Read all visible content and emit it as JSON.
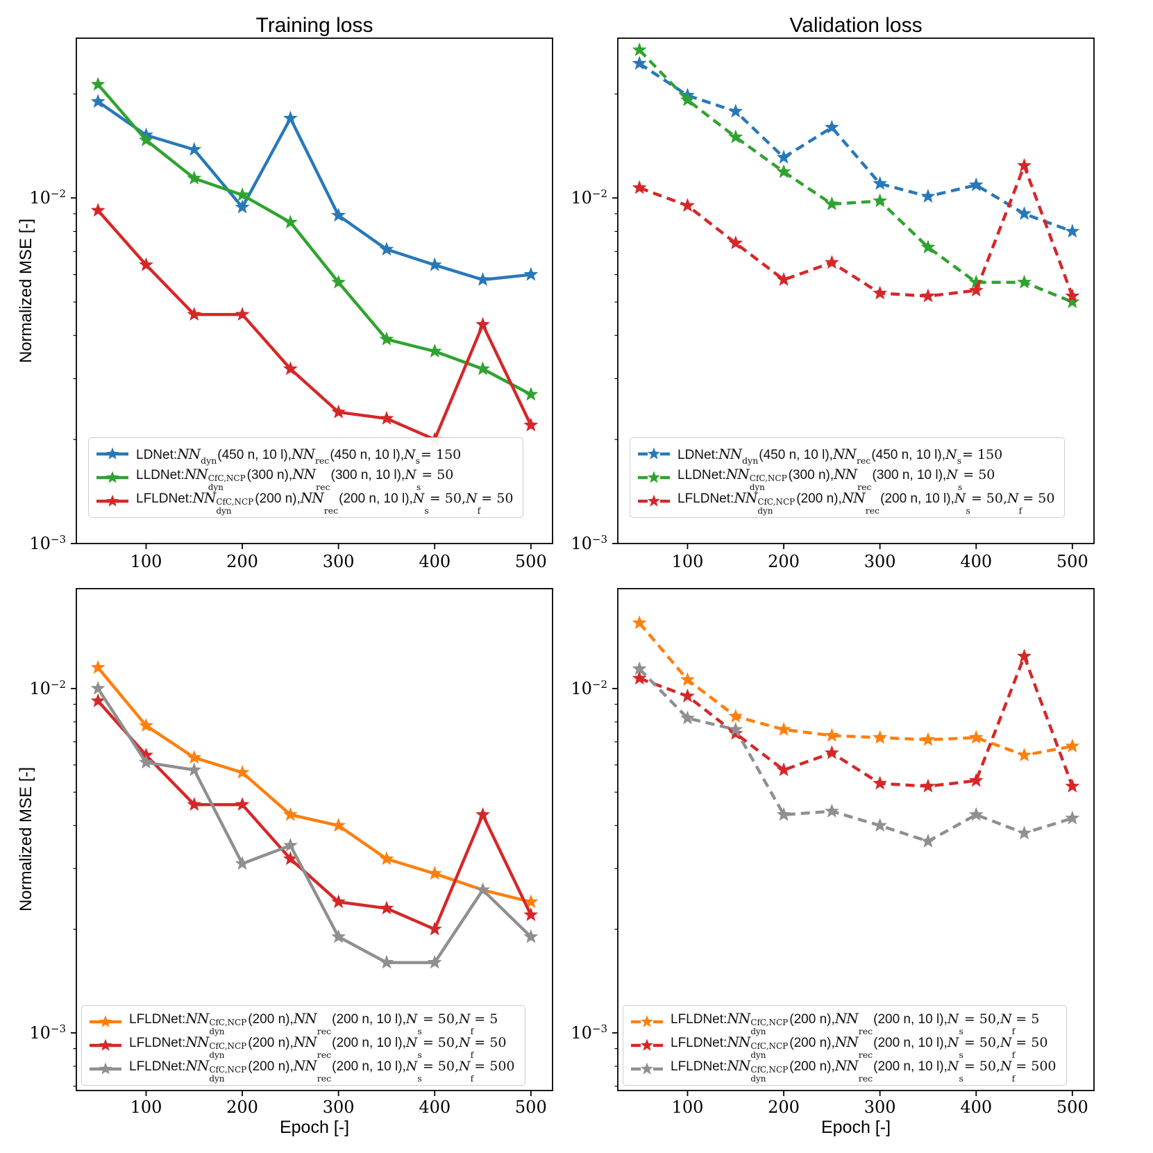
{
  "figure": {
    "title_left": "Training loss",
    "title_right": "Validation loss",
    "ylabel": "Normalized MSE [-]",
    "xlabel": "Epoch [-]",
    "background": "#ffffff",
    "spine_color": "#000000",
    "colors": {
      "blue": "#2878b9",
      "green": "#2fa32f",
      "red": "#d62728",
      "orange": "#ff7f0e",
      "gray": "#8f8f8f"
    }
  },
  "legend_defs": {
    "ldnet": {
      "color": "blue",
      "parts": [
        {
          "style": "plain",
          "t": "LDNet: "
        },
        {
          "style": "script",
          "t": "NN"
        },
        {
          "style": "sub",
          "t": "dyn"
        },
        {
          "style": "plain",
          "t": " (450 n, 10 l), "
        },
        {
          "style": "script",
          "t": "NN"
        },
        {
          "style": "sub",
          "t": "rec"
        },
        {
          "style": "plain",
          "t": " (450 n, 10 l), "
        },
        {
          "style": "mathit",
          "t": "N"
        },
        {
          "style": "sub",
          "t": "s"
        },
        {
          "style": "serif",
          "t": " = 150"
        }
      ]
    },
    "lldnet": {
      "color": "green",
      "parts": [
        {
          "style": "plain",
          "t": "LLDNet: "
        },
        {
          "style": "script",
          "t": "NN"
        },
        {
          "style": "supsub",
          "sup": "CfC,NCP",
          "sub": "dyn"
        },
        {
          "style": "plain",
          "t": " (300 n), "
        },
        {
          "style": "script",
          "t": "NN"
        },
        {
          "style": "sub",
          "t": "rec"
        },
        {
          "style": "plain",
          "t": " (300 n, 10 l), "
        },
        {
          "style": "mathit",
          "t": "N"
        },
        {
          "style": "sub",
          "t": "s"
        },
        {
          "style": "serif",
          "t": " = 50"
        }
      ]
    },
    "lfldnet_5": {
      "color": "orange",
      "parts": [
        {
          "style": "plain",
          "t": "LFLDNet: "
        },
        {
          "style": "script",
          "t": "NN"
        },
        {
          "style": "supsub",
          "sup": "CfC,NCP",
          "sub": "dyn"
        },
        {
          "style": "plain",
          "t": " (200 n), "
        },
        {
          "style": "script",
          "t": "NN"
        },
        {
          "style": "sub",
          "t": "rec"
        },
        {
          "style": "plain",
          "t": " (200 n, 10 l), "
        },
        {
          "style": "mathit",
          "t": "N"
        },
        {
          "style": "sub",
          "t": "s"
        },
        {
          "style": "serif",
          "t": " = 50, "
        },
        {
          "style": "mathit",
          "t": "N"
        },
        {
          "style": "sub",
          "t": "f"
        },
        {
          "style": "serif",
          "t": " = 5"
        }
      ]
    },
    "lfldnet_50": {
      "color": "red",
      "parts": [
        {
          "style": "plain",
          "t": "LFLDNet: "
        },
        {
          "style": "script",
          "t": "NN"
        },
        {
          "style": "supsub",
          "sup": "CfC,NCP",
          "sub": "dyn"
        },
        {
          "style": "plain",
          "t": " (200 n), "
        },
        {
          "style": "script",
          "t": "NN"
        },
        {
          "style": "sub",
          "t": "rec"
        },
        {
          "style": "plain",
          "t": " (200 n, 10 l), "
        },
        {
          "style": "mathit",
          "t": "N"
        },
        {
          "style": "sub",
          "t": "s"
        },
        {
          "style": "serif",
          "t": " = 50, "
        },
        {
          "style": "mathit",
          "t": "N"
        },
        {
          "style": "sub",
          "t": "f"
        },
        {
          "style": "serif",
          "t": " = 50"
        }
      ]
    },
    "lfldnet_500": {
      "color": "gray",
      "parts": [
        {
          "style": "plain",
          "t": "LFLDNet: "
        },
        {
          "style": "script",
          "t": "NN"
        },
        {
          "style": "supsub",
          "sup": "CfC,NCP",
          "sub": "dyn"
        },
        {
          "style": "plain",
          "t": " (200 n), "
        },
        {
          "style": "script",
          "t": "NN"
        },
        {
          "style": "sub",
          "t": "rec"
        },
        {
          "style": "plain",
          "t": " (200 n, 10 l), "
        },
        {
          "style": "mathit",
          "t": "N"
        },
        {
          "style": "sub",
          "t": "s"
        },
        {
          "style": "serif",
          "t": " = 50, "
        },
        {
          "style": "mathit",
          "t": "N"
        },
        {
          "style": "sub",
          "t": "f"
        },
        {
          "style": "serif",
          "t": " = 500"
        }
      ]
    }
  },
  "chart_data": [
    {
      "id": "training-top",
      "panel": "top-left",
      "type": "line",
      "title": "Training loss",
      "ylabel": "Normalized MSE [-]",
      "yscale": "log",
      "linestyle": "solid",
      "marker": "star",
      "xlim": [
        27.5,
        522.5
      ],
      "ylim": [
        0.001,
        0.029
      ],
      "x": [
        50,
        100,
        150,
        200,
        250,
        300,
        350,
        400,
        450,
        500
      ],
      "xticks": [
        100,
        200,
        300,
        400,
        500
      ],
      "yticks": [
        {
          "value": 0.01,
          "base": "10",
          "exp": "−2"
        },
        {
          "value": 0.001,
          "base": "10",
          "exp": "−3"
        }
      ],
      "yminor": [
        0.002,
        0.003,
        0.004,
        0.005,
        0.006,
        0.007,
        0.008,
        0.009,
        0.02
      ],
      "series": [
        {
          "key": "ldnet",
          "name": "LDNet",
          "color": "blue",
          "values": [
            0.019,
            0.0152,
            0.0138,
            0.0094,
            0.017,
            0.0089,
            0.0071,
            0.0064,
            0.0058,
            0.006
          ]
        },
        {
          "key": "lldnet",
          "name": "LLDNet",
          "color": "green",
          "values": [
            0.0213,
            0.0147,
            0.0114,
            0.0102,
            0.0085,
            0.0057,
            0.0039,
            0.0036,
            0.0032,
            0.0027
          ]
        },
        {
          "key": "lfldnet_50",
          "name": "LFLDNet (Nf=50)",
          "color": "red",
          "values": [
            0.0092,
            0.0064,
            0.0046,
            0.0046,
            0.0032,
            0.0024,
            0.0023,
            0.002,
            0.0043,
            0.0022
          ]
        }
      ],
      "legend_keys": [
        "ldnet",
        "lldnet",
        "lfldnet_50"
      ]
    },
    {
      "id": "validation-top",
      "panel": "top-right",
      "type": "line",
      "title": "Validation loss",
      "yscale": "log",
      "linestyle": "dashed",
      "marker": "star",
      "xlim": [
        27.5,
        522.5
      ],
      "ylim": [
        0.001,
        0.029
      ],
      "x": [
        50,
        100,
        150,
        200,
        250,
        300,
        350,
        400,
        450,
        500
      ],
      "xticks": [
        100,
        200,
        300,
        400,
        500
      ],
      "yticks": [
        {
          "value": 0.01,
          "base": "10",
          "exp": "−2"
        },
        {
          "value": 0.001,
          "base": "10",
          "exp": "−3"
        }
      ],
      "yminor": [
        0.002,
        0.003,
        0.004,
        0.005,
        0.006,
        0.007,
        0.008,
        0.009,
        0.02
      ],
      "series": [
        {
          "key": "ldnet",
          "name": "LDNet",
          "color": "blue",
          "values": [
            0.0245,
            0.0198,
            0.0178,
            0.0131,
            0.016,
            0.011,
            0.0101,
            0.0109,
            0.009,
            0.008
          ]
        },
        {
          "key": "lldnet",
          "name": "LLDNet",
          "color": "green",
          "values": [
            0.0268,
            0.0192,
            0.015,
            0.0119,
            0.0096,
            0.0098,
            0.0072,
            0.0057,
            0.0057,
            0.005
          ]
        },
        {
          "key": "lfldnet_50",
          "name": "LFLDNet (Nf=50)",
          "color": "red",
          "values": [
            0.0107,
            0.0095,
            0.0074,
            0.0058,
            0.0065,
            0.0053,
            0.0052,
            0.0054,
            0.0124,
            0.0052
          ]
        }
      ],
      "legend_keys": [
        "ldnet",
        "lldnet",
        "lfldnet_50"
      ]
    },
    {
      "id": "training-bottom",
      "panel": "bottom-left",
      "type": "line",
      "title": "Training loss",
      "ylabel": "Normalized MSE [-]",
      "xlabel": "Epoch [-]",
      "yscale": "log",
      "linestyle": "solid",
      "marker": "star",
      "xlim": [
        27.5,
        522.5
      ],
      "ylim": [
        0.00068,
        0.0195
      ],
      "x": [
        50,
        100,
        150,
        200,
        250,
        300,
        350,
        400,
        450,
        500
      ],
      "xticks": [
        100,
        200,
        300,
        400,
        500
      ],
      "yticks": [
        {
          "value": 0.01,
          "base": "10",
          "exp": "−2"
        },
        {
          "value": 0.001,
          "base": "10",
          "exp": "−3"
        }
      ],
      "yminor": [
        0.0007,
        0.0008,
        0.0009,
        0.002,
        0.003,
        0.004,
        0.005,
        0.006,
        0.007,
        0.008,
        0.009
      ],
      "series": [
        {
          "key": "lfldnet_5",
          "name": "LFLDNet (Nf=5)",
          "color": "orange",
          "values": [
            0.0115,
            0.0078,
            0.0063,
            0.0057,
            0.0043,
            0.004,
            0.0032,
            0.0029,
            0.0026,
            0.0024
          ]
        },
        {
          "key": "lfldnet_50",
          "name": "LFLDNet (Nf=50)",
          "color": "red",
          "values": [
            0.0092,
            0.0064,
            0.0046,
            0.0046,
            0.0032,
            0.0024,
            0.0023,
            0.002,
            0.0043,
            0.0022
          ]
        },
        {
          "key": "lfldnet_500",
          "name": "LFLDNet (Nf=500)",
          "color": "gray",
          "values": [
            0.01,
            0.0061,
            0.0058,
            0.0031,
            0.0035,
            0.0019,
            0.0016,
            0.0016,
            0.0026,
            0.0019
          ]
        }
      ],
      "legend_keys": [
        "lfldnet_5",
        "lfldnet_50",
        "lfldnet_500"
      ]
    },
    {
      "id": "validation-bottom",
      "panel": "bottom-right",
      "type": "line",
      "title": "Validation loss",
      "xlabel": "Epoch [-]",
      "yscale": "log",
      "linestyle": "dashed",
      "marker": "star",
      "xlim": [
        27.5,
        522.5
      ],
      "ylim": [
        0.00068,
        0.0195
      ],
      "x": [
        50,
        100,
        150,
        200,
        250,
        300,
        350,
        400,
        450,
        500
      ],
      "xticks": [
        100,
        200,
        300,
        400,
        500
      ],
      "yticks": [
        {
          "value": 0.01,
          "base": "10",
          "exp": "−2"
        },
        {
          "value": 0.001,
          "base": "10",
          "exp": "−3"
        }
      ],
      "yminor": [
        0.0007,
        0.0008,
        0.0009,
        0.002,
        0.003,
        0.004,
        0.005,
        0.006,
        0.007,
        0.008,
        0.009
      ],
      "series": [
        {
          "key": "lfldnet_5",
          "name": "LFLDNet (Nf=5)",
          "color": "orange",
          "values": [
            0.0155,
            0.0106,
            0.0083,
            0.0076,
            0.0073,
            0.0072,
            0.0071,
            0.0072,
            0.0064,
            0.0068
          ]
        },
        {
          "key": "lfldnet_50",
          "name": "LFLDNet (Nf=50)",
          "color": "red",
          "values": [
            0.0107,
            0.0095,
            0.0074,
            0.0058,
            0.0065,
            0.0053,
            0.0052,
            0.0054,
            0.0124,
            0.0052
          ]
        },
        {
          "key": "lfldnet_500",
          "name": "LFLDNet (Nf=500)",
          "color": "gray",
          "values": [
            0.0114,
            0.0082,
            0.0076,
            0.0043,
            0.0044,
            0.004,
            0.0036,
            0.0043,
            0.0038,
            0.0042
          ]
        }
      ],
      "legend_keys": [
        "lfldnet_5",
        "lfldnet_50",
        "lfldnet_500"
      ]
    }
  ]
}
